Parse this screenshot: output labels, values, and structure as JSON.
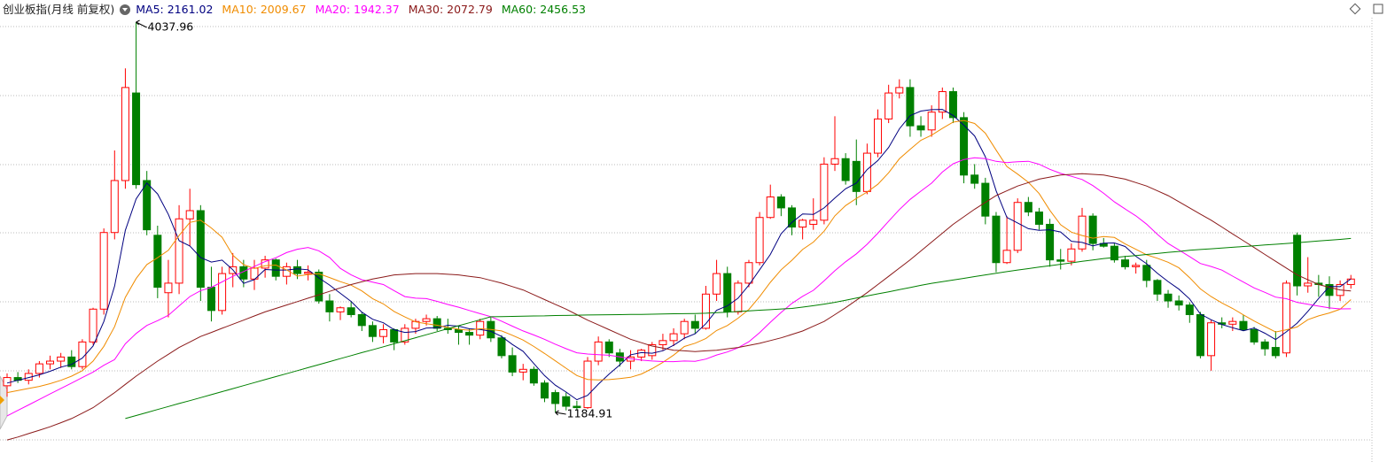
{
  "chart_data": {
    "type": "candlestick",
    "title": "创业板指(月线 前复权)",
    "up_color": "#ff0000",
    "down_color": "#008000",
    "open": [
      1380,
      1440,
      1420,
      1470,
      1540,
      1560,
      1590,
      1520,
      1700,
      1940,
      2500,
      2880,
      3520,
      2880,
      2480,
      2060,
      2130,
      2600,
      2660,
      2100,
      1930,
      2200,
      2250,
      2160,
      2240,
      2300,
      2180,
      2250,
      2200,
      2210,
      2000,
      1920,
      1950,
      1900,
      1820,
      1740,
      1790,
      1700,
      1800,
      1850,
      1870,
      1800,
      1790,
      1770,
      1750,
      1850,
      1730,
      1600,
      1480,
      1500,
      1400,
      1330,
      1300,
      1230,
      1220,
      1560,
      1700,
      1620,
      1560,
      1590,
      1600,
      1680,
      1710,
      1760,
      1850,
      1800,
      2050,
      2200,
      1920,
      2130,
      2280,
      2610,
      2760,
      2680,
      2540,
      2560,
      2590,
      3000,
      3040,
      3020,
      2800,
      3080,
      3330,
      3520,
      3560,
      3280,
      3250,
      3380,
      3530,
      3340,
      2920,
      2860,
      2620,
      2280,
      2370,
      2720,
      2650,
      2560,
      2300,
      2290,
      2380,
      2620,
      2420,
      2400,
      2300,
      2250,
      2260,
      2150,
      2050,
      2000,
      1970,
      1900,
      1600,
      1840,
      1830,
      1850,
      1790,
      1700,
      1660,
      1620,
      2480,
      2110,
      2130,
      2120,
      2040,
      2120
    ],
    "high": [
      1470,
      1480,
      1500,
      1560,
      1600,
      1620,
      1640,
      1720,
      1950,
      2530,
      3100,
      3700,
      4037.96,
      2950,
      2550,
      2300,
      2700,
      2820,
      2700,
      2250,
      2250,
      2350,
      2300,
      2300,
      2330,
      2310,
      2280,
      2300,
      2260,
      2230,
      2050,
      1960,
      2000,
      1920,
      1850,
      1830,
      1800,
      1830,
      1870,
      1900,
      1890,
      1870,
      1820,
      1800,
      1870,
      1880,
      1750,
      1660,
      1540,
      1520,
      1420,
      1350,
      1330,
      1270,
      1590,
      1740,
      1720,
      1650,
      1640,
      1650,
      1700,
      1760,
      1800,
      1870,
      1900,
      2110,
      2300,
      2250,
      2150,
      2300,
      2650,
      2850,
      2780,
      2700,
      2600,
      2750,
      3050,
      3350,
      3080,
      3180,
      3150,
      3400,
      3580,
      3620,
      3620,
      3350,
      3430,
      3560,
      3560,
      3380,
      3000,
      2900,
      2650,
      2620,
      2750,
      2760,
      2680,
      2600,
      2380,
      2420,
      2680,
      2640,
      2460,
      2420,
      2330,
      2280,
      2300,
      2160,
      2080,
      2040,
      1990,
      1920,
      1860,
      1880,
      1880,
      1900,
      1810,
      1720,
      1780,
      2150,
      2500,
      2320,
      2190,
      2180,
      2150,
      2190
    ],
    "low": [
      1300,
      1400,
      1390,
      1440,
      1500,
      1510,
      1500,
      1500,
      1680,
      1900,
      2450,
      2820,
      2820,
      2480,
      2020,
      1880,
      2050,
      2400,
      2000,
      1850,
      1900,
      2100,
      2100,
      2080,
      2170,
      2150,
      2120,
      2160,
      2150,
      1980,
      1850,
      1860,
      1880,
      1780,
      1700,
      1690,
      1640,
      1680,
      1760,
      1820,
      1780,
      1760,
      1680,
      1680,
      1720,
      1700,
      1580,
      1450,
      1420,
      1380,
      1260,
      1184.91,
      1200,
      1200,
      1210,
      1530,
      1590,
      1520,
      1500,
      1560,
      1570,
      1640,
      1670,
      1720,
      1760,
      1790,
      2000,
      1880,
      1900,
      2100,
      2260,
      2600,
      2620,
      2480,
      2450,
      2520,
      2560,
      2950,
      2850,
      2700,
      2780,
      3050,
      3300,
      3480,
      3200,
      3200,
      3200,
      3330,
      3300,
      2860,
      2820,
      2560,
      2210,
      2270,
      2350,
      2620,
      2520,
      2250,
      2230,
      2260,
      2360,
      2370,
      2390,
      2280,
      2230,
      2200,
      2100,
      2000,
      1950,
      1930,
      1840,
      1580,
      1490,
      1800,
      1780,
      1780,
      1680,
      1600,
      1580,
      1590,
      2040,
      2060,
      2030,
      1940,
      2000,
      2090
    ],
    "close": [
      1440,
      1420,
      1470,
      1540,
      1560,
      1590,
      1520,
      1700,
      1940,
      2500,
      2880,
      3560,
      2850,
      2520,
      2100,
      2130,
      2600,
      2660,
      2100,
      1930,
      2200,
      2250,
      2160,
      2240,
      2300,
      2180,
      2250,
      2200,
      2210,
      2000,
      1920,
      1950,
      1900,
      1820,
      1740,
      1790,
      1700,
      1800,
      1850,
      1870,
      1800,
      1790,
      1770,
      1750,
      1850,
      1730,
      1600,
      1480,
      1500,
      1400,
      1290,
      1250,
      1230,
      1220,
      1560,
      1700,
      1620,
      1560,
      1590,
      1640,
      1680,
      1710,
      1760,
      1850,
      1800,
      2050,
      2200,
      1920,
      2130,
      2280,
      2610,
      2760,
      2680,
      2540,
      2590,
      2590,
      3000,
      3040,
      2880,
      2800,
      3080,
      3330,
      3520,
      3560,
      3280,
      3250,
      3380,
      3530,
      3340,
      2920,
      2860,
      2620,
      2280,
      2370,
      2720,
      2650,
      2560,
      2300,
      2290,
      2380,
      2620,
      2420,
      2400,
      2300,
      2250,
      2260,
      2150,
      2050,
      2000,
      1970,
      1900,
      1600,
      1840,
      1830,
      1850,
      1790,
      1700,
      1650,
      1600,
      2130,
      2110,
      2130,
      2120,
      2040,
      2120,
      2160
    ],
    "series": [
      {
        "name": "MA5",
        "color": "#000080",
        "values": [
          1400,
          1420,
          1440,
          1460,
          1486,
          1516,
          1536,
          1582,
          1670,
          1850,
          2108,
          2516,
          2746,
          2862,
          2782,
          2632,
          2440,
          2402,
          2318,
          2284,
          2298,
          2228,
          2128,
          2156,
          2230,
          2226,
          2226,
          2234,
          2228,
          2168,
          2116,
          2056,
          1996,
          1918,
          1866,
          1840,
          1790,
          1770,
          1776,
          1802,
          1804,
          1822,
          1816,
          1796,
          1792,
          1778,
          1740,
          1682,
          1632,
          1542,
          1454,
          1384,
          1334,
          1278,
          1310,
          1392,
          1466,
          1532,
          1606,
          1622,
          1618,
          1636,
          1676,
          1728,
          1760,
          1834,
          1932,
          1964,
          2020,
          2116,
          2228,
          2340,
          2492,
          2574,
          2636,
          2632,
          2680,
          2752,
          2820,
          2862,
          2960,
          3026,
          3122,
          3258,
          3354,
          3388,
          3398,
          3400,
          3356,
          3284,
          3206,
          3054,
          2804,
          2610,
          2570,
          2528,
          2516,
          2520,
          2504,
          2436,
          2428,
          2402,
          2422,
          2424,
          2398,
          2326,
          2272,
          2202,
          2142,
          2086,
          2014,
          1904,
          1862,
          1828,
          1804,
          1782,
          1802,
          1764,
          1718,
          1774,
          1838,
          1924,
          2018,
          2106,
          2104,
          2161.02
        ]
      },
      {
        "name": "MA10",
        "color": "#f08c00",
        "values": [
          1330,
          1345,
          1360,
          1375,
          1395,
          1420,
          1450,
          1490,
          1560,
          1668,
          1812,
          2026,
          2164,
          2266,
          2316,
          2370,
          2478,
          2574,
          2590,
          2533,
          2465,
          2334,
          2265,
          2237,
          2257,
          2262,
          2227,
          2181,
          2192,
          2199,
          2171,
          2141,
          2115,
          2073,
          2017,
          1978,
          1923,
          1883,
          1847,
          1834,
          1822,
          1806,
          1793,
          1786,
          1797,
          1791,
          1781,
          1749,
          1714,
          1667,
          1616,
          1562,
          1508,
          1455,
          1426,
          1423,
          1425,
          1433,
          1442,
          1466,
          1505,
          1551,
          1604,
          1667,
          1691,
          1726,
          1784,
          1820,
          1874,
          1938,
          2031,
          2136,
          2228,
          2297,
          2376,
          2430,
          2510,
          2622,
          2697,
          2749,
          2796,
          2853,
          2937,
          3039,
          3108,
          3174,
          3212,
          3261,
          3307,
          3319,
          3297,
          3226,
          3102,
          2983,
          2927,
          2867,
          2785,
          2662,
          2557,
          2503,
          2478,
          2459,
          2471,
          2464,
          2417,
          2377,
          2337,
          2312,
          2283,
          2242,
          2170,
          2088,
          2032,
          1985,
          1945,
          1898,
          1853,
          1813,
          1773,
          1789,
          1810,
          1863,
          1891,
          1912,
          1939,
          2009.67
        ]
      },
      {
        "name": "MA20",
        "color": "#ff00ff",
        "values": [
          1160,
          1200,
          1240,
          1280,
          1320,
          1360,
          1400,
          1440,
          1480,
          1530,
          1571,
          1686,
          1762,
          1821,
          1856,
          1895,
          1964,
          2032,
          2075,
          2100,
          2139,
          2180,
          2215,
          2252,
          2287,
          2316,
          2353,
          2378,
          2391,
          2366,
          2318,
          2238,
          2190,
          2155,
          2137,
          2120,
          2075,
          2032,
          2020,
          2017,
          1997,
          1974,
          1954,
          1930,
          1907,
          1885,
          1852,
          1816,
          1781,
          1751,
          1719,
          1684,
          1651,
          1621,
          1612,
          1607,
          1603,
          1591,
          1578,
          1567,
          1561,
          1557,
          1556,
          1561,
          1559,
          1575,
          1605,
          1627,
          1658,
          1702,
          1768,
          1844,
          1916,
          1982,
          2034,
          2078,
          2147,
          2221,
          2286,
          2344,
          2414,
          2495,
          2583,
          2668,
          2742,
          2802,
          2861,
          2942,
          3002,
          3034,
          3047,
          3040,
          3020,
          3011,
          3018,
          3021,
          2999,
          2962,
          2932,
          2911,
          2888,
          2843,
          2787,
          2724,
          2672,
          2622,
          2561,
          2487,
          2420,
          2373,
          2324,
          2274,
          2252,
          2225,
          2181,
          2138,
          2095,
          2063,
          2028,
          2016,
          1990,
          1976,
          1962,
          1949,
          1942,
          1942.37
        ]
      },
      {
        "name": "MA30",
        "color": "#8b1a1a",
        "values": [
          984,
          1005,
          1030,
          1055,
          1080,
          1110,
          1140,
          1180,
          1220,
          1275,
          1330,
          1390,
          1450,
          1505,
          1560,
          1610,
          1660,
          1700,
          1740,
          1770,
          1800,
          1830,
          1860,
          1890,
          1920,
          1945,
          1970,
          1995,
          2020,
          2045,
          2070,
          2095,
          2120,
          2140,
          2160,
          2175,
          2190,
          2195,
          2200,
          2200,
          2200,
          2195,
          2190,
          2180,
          2170,
          2150,
          2130,
          2105,
          2080,
          2045,
          2010,
          1975,
          1940,
          1900,
          1860,
          1825,
          1790,
          1755,
          1720,
          1695,
          1670,
          1655,
          1640,
          1635,
          1630,
          1635,
          1640,
          1650,
          1660,
          1675,
          1690,
          1710,
          1730,
          1755,
          1780,
          1815,
          1850,
          1900,
          1950,
          2005,
          2060,
          2120,
          2180,
          2240,
          2300,
          2365,
          2430,
          2495,
          2560,
          2615,
          2670,
          2720,
          2770,
          2805,
          2840,
          2865,
          2890,
          2905,
          2920,
          2925,
          2930,
          2925,
          2920,
          2905,
          2890,
          2865,
          2840,
          2805,
          2770,
          2725,
          2680,
          2635,
          2590,
          2540,
          2490,
          2440,
          2390,
          2340,
          2290,
          2240,
          2190,
          2155,
          2120,
          2100,
          2080,
          2072.79
        ]
      },
      {
        "name": "MA60",
        "color": "#008000",
        "values": [
          null,
          null,
          null,
          null,
          null,
          null,
          null,
          null,
          null,
          null,
          null,
          1140,
          1162,
          1184,
          1206,
          1228,
          1250,
          1271,
          1293,
          1315,
          1337,
          1359,
          1381,
          1403,
          1425,
          1447,
          1468,
          1490,
          1512,
          1534,
          1556,
          1578,
          1600,
          1622,
          1643,
          1665,
          1687,
          1709,
          1731,
          1753,
          1775,
          1797,
          1819,
          1840,
          1862,
          1884,
          1885,
          1887,
          1888,
          1890,
          1891,
          1893,
          1894,
          1896,
          1897,
          1898,
          1899,
          1900,
          1901,
          1902,
          1903,
          1905,
          1906,
          1907,
          1908,
          1910,
          1914,
          1918,
          1923,
          1927,
          1932,
          1936,
          1941,
          1945,
          1955,
          1965,
          1977,
          1990,
          2005,
          2021,
          2036,
          2052,
          2067,
          2083,
          2098,
          2114,
          2129,
          2141,
          2153,
          2165,
          2178,
          2190,
          2202,
          2214,
          2226,
          2236,
          2247,
          2257,
          2268,
          2278,
          2289,
          2299,
          2310,
          2317,
          2325,
          2332,
          2340,
          2347,
          2355,
          2362,
          2370,
          2376,
          2381,
          2387,
          2392,
          2398,
          2403,
          2409,
          2414,
          2420,
          2426,
          2432,
          2438,
          2444,
          2450,
          2456.53
        ]
      }
    ]
  }
}
